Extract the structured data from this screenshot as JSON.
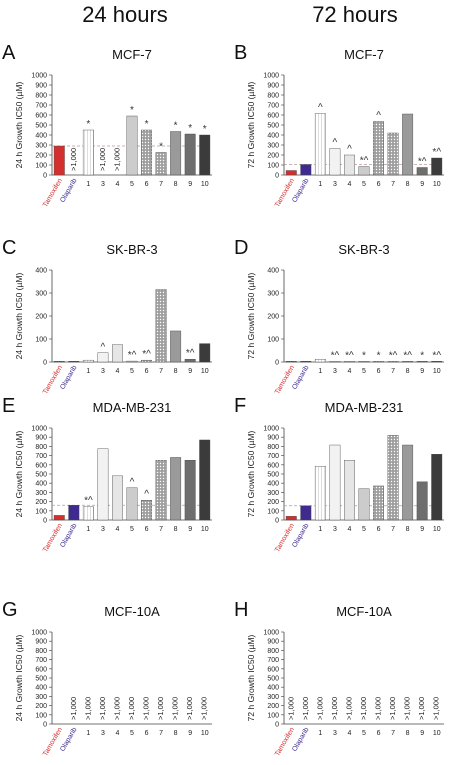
{
  "figure": {
    "column_titles": [
      "24 hours",
      "72 hours"
    ]
  },
  "colors": {
    "tamoxifen": "#d32f2f",
    "olaparib": "#3f2b8f",
    "reference_line": "#b89a9a",
    "compound_fills": [
      "#ffffff",
      "#f2f2f2",
      "#e6e6e6",
      "#cccccc",
      "#bdbdbd",
      "#a9a9a9",
      "#9a9a9a",
      "#6e6e6e",
      "#3b3b3b",
      "#111111"
    ]
  },
  "chart_data": [
    {
      "type": "bar",
      "panel": "A",
      "title": "MCF-7",
      "ylabel": "24 h Growth IC50 (µM)",
      "ylim": [
        0,
        1000
      ],
      "yticks": [
        0,
        100,
        200,
        300,
        400,
        500,
        600,
        700,
        800,
        900,
        1000
      ],
      "reference_line": 290,
      "categories": [
        "Tamoxifen",
        "Olaparib",
        "1",
        "3",
        "4",
        "5",
        "6",
        "7",
        "8",
        "9",
        "10"
      ],
      "values": [
        290,
        null,
        450,
        null,
        null,
        590,
        450,
        225,
        435,
        410,
        400
      ],
      "annotations": [
        "",
        ">1,000",
        "*",
        ">1,000",
        ">1,000",
        "*",
        "*",
        "*",
        "*",
        "*",
        "*"
      ]
    },
    {
      "type": "bar",
      "panel": "B",
      "title": "MCF-7",
      "ylabel": "72 h Growth IC50 (µM)",
      "ylim": [
        0,
        1000
      ],
      "yticks": [
        0,
        100,
        200,
        300,
        400,
        500,
        600,
        700,
        800,
        900,
        1000
      ],
      "reference_line": 105,
      "categories": [
        "Tamoxifen",
        "Olaparib",
        "1",
        "3",
        "4",
        "5",
        "6",
        "7",
        "8",
        "9",
        "10"
      ],
      "values": [
        45,
        105,
        615,
        265,
        200,
        85,
        535,
        420,
        610,
        75,
        170
      ],
      "annotations": [
        "",
        "",
        "^",
        "^",
        "^",
        "*^",
        "^",
        "",
        "",
        "*^",
        "*^"
      ]
    },
    {
      "type": "bar",
      "panel": "C",
      "title": "SK-BR-3",
      "ylabel": "24 h Growth IC50 (µM)",
      "ylim": [
        0,
        400
      ],
      "yticks": [
        0,
        100,
        200,
        300,
        400
      ],
      "reference_line": null,
      "categories": [
        "Tamoxifen",
        "Olaparib",
        "1",
        "3",
        "4",
        "5",
        "6",
        "7",
        "8",
        "9",
        "10"
      ],
      "values": [
        3,
        3,
        8,
        40,
        75,
        4,
        8,
        315,
        135,
        12,
        80
      ],
      "annotations": [
        "",
        "",
        "",
        "^",
        "",
        "*^",
        "*^",
        "",
        "",
        "*^",
        ""
      ]
    },
    {
      "type": "bar",
      "panel": "D",
      "title": "SK-BR-3",
      "ylabel": "72 h Growth IC50 (µM)",
      "ylim": [
        0,
        400
      ],
      "yticks": [
        0,
        100,
        200,
        300,
        400
      ],
      "reference_line": null,
      "categories": [
        "Tamoxifen",
        "Olaparib",
        "1",
        "3",
        "4",
        "5",
        "6",
        "7",
        "8",
        "9",
        "10"
      ],
      "values": [
        3,
        3,
        12,
        3,
        3,
        3,
        3,
        3,
        3,
        3,
        3
      ],
      "annotations": [
        "",
        "",
        "",
        "*^",
        "*^",
        "*",
        "*",
        "*^",
        "*^",
        "*",
        "*^"
      ]
    },
    {
      "type": "bar",
      "panel": "E",
      "title": "MDA-MB-231",
      "ylabel": "24 h Growth IC50 (µM)",
      "ylim": [
        0,
        1000
      ],
      "yticks": [
        0,
        100,
        200,
        300,
        400,
        500,
        600,
        700,
        800,
        900,
        1000
      ],
      "reference_line": 160,
      "categories": [
        "Tamoxifen",
        "Olaparib",
        "1",
        "3",
        "4",
        "5",
        "6",
        "7",
        "8",
        "9",
        "10"
      ],
      "values": [
        50,
        160,
        145,
        775,
        480,
        350,
        215,
        650,
        680,
        650,
        870
      ],
      "annotations": [
        "",
        "",
        "*^",
        "",
        "",
        "^",
        "^",
        "",
        "",
        "",
        ""
      ]
    },
    {
      "type": "bar",
      "panel": "F",
      "title": "MDA-MB-231",
      "ylabel": "72 h Growth IC50 (µM)",
      "ylim": [
        0,
        1000
      ],
      "yticks": [
        0,
        100,
        200,
        300,
        400,
        500,
        600,
        700,
        800,
        900,
        1000
      ],
      "reference_line": 155,
      "categories": [
        "Tamoxifen",
        "Olaparib",
        "1",
        "3",
        "4",
        "5",
        "6",
        "7",
        "8",
        "9",
        "10"
      ],
      "values": [
        40,
        155,
        585,
        815,
        650,
        340,
        370,
        920,
        815,
        415,
        715
      ],
      "annotations": [
        "",
        "",
        "",
        "",
        "",
        "",
        "",
        "",
        "",
        "",
        ""
      ]
    },
    {
      "type": "bar",
      "panel": "G",
      "title": "MCF-10A",
      "ylabel": "24 h Growth IC50 (µM)",
      "ylim": [
        0,
        1000
      ],
      "yticks": [
        0,
        100,
        200,
        300,
        400,
        500,
        600,
        700,
        800,
        900,
        1000
      ],
      "reference_line": null,
      "categories": [
        "Tamoxifen",
        "Olaparib",
        "1",
        "3",
        "4",
        "5",
        "6",
        "7",
        "8",
        "9",
        "10"
      ],
      "values": [
        null,
        null,
        null,
        null,
        null,
        null,
        null,
        null,
        null,
        null,
        null
      ],
      "annotations": [
        "",
        ">1,000",
        ">1,000",
        ">1,000",
        ">1,000",
        ">1,000",
        ">1,000",
        ">1,000",
        ">1,000",
        ">1,000",
        ">1,000"
      ]
    },
    {
      "type": "bar",
      "panel": "H",
      "title": "MCF-10A",
      "ylabel": "72 h Growth IC50 (µM)",
      "ylim": [
        0,
        1000
      ],
      "yticks": [
        0,
        100,
        200,
        300,
        400,
        500,
        600,
        700,
        800,
        900,
        1000
      ],
      "reference_line": null,
      "categories": [
        "Tamoxifen",
        "Olaparib",
        "1",
        "3",
        "4",
        "5",
        "6",
        "7",
        "8",
        "9",
        "10"
      ],
      "values": [
        null,
        null,
        null,
        null,
        null,
        null,
        null,
        null,
        null,
        null,
        null
      ],
      "annotations": [
        ">1,000",
        ">1,000",
        ">1,000",
        ">1,000",
        ">1,000",
        ">1,000",
        ">1,000",
        ">1,000",
        ">1,000",
        ">1,000",
        ">1,000"
      ]
    }
  ]
}
